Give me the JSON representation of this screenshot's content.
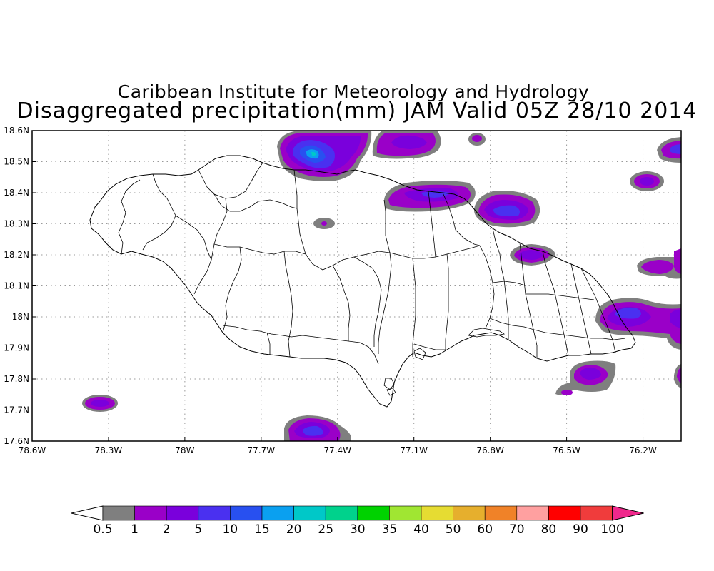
{
  "titles": {
    "line1": "Caribbean Institute for Meteorology and Hydrology",
    "line2": "Disaggregated precipitation(mm) JAM Valid 05Z 28/10 2014"
  },
  "map": {
    "lon_range": [
      -78.6,
      -76.05
    ],
    "lat_range": [
      17.6,
      18.6
    ],
    "lon_ticks": [
      {
        "value": -78.6,
        "label": "78.6W"
      },
      {
        "value": -78.3,
        "label": "78.3W"
      },
      {
        "value": -78.0,
        "label": "78W"
      },
      {
        "value": -77.7,
        "label": "77.7W"
      },
      {
        "value": -77.4,
        "label": "77.4W"
      },
      {
        "value": -77.1,
        "label": "77.1W"
      },
      {
        "value": -76.8,
        "label": "76.8W"
      },
      {
        "value": -76.5,
        "label": "76.5W"
      },
      {
        "value": -76.2,
        "label": "76.2W"
      }
    ],
    "lat_ticks": [
      {
        "value": 17.6,
        "label": "17.6N"
      },
      {
        "value": 17.7,
        "label": "17.7N"
      },
      {
        "value": 17.8,
        "label": "17.8N"
      },
      {
        "value": 17.9,
        "label": "17.9N"
      },
      {
        "value": 18.0,
        "label": "18N"
      },
      {
        "value": 18.1,
        "label": "18.1N"
      },
      {
        "value": 18.2,
        "label": "18.2N"
      },
      {
        "value": 18.3,
        "label": "18.3N"
      },
      {
        "value": 18.4,
        "label": "18.4N"
      },
      {
        "value": 18.5,
        "label": "18.5N"
      },
      {
        "value": 18.6,
        "label": "18.6N"
      }
    ],
    "grid": true
  },
  "colorbar": {
    "colors": [
      "#7f7f7f",
      "#9a00c8",
      "#7a00dc",
      "#4a30f0",
      "#2850f0",
      "#0aa0f0",
      "#00c8c8",
      "#00d28c",
      "#00d200",
      "#a0e632",
      "#e6dc32",
      "#e6af2d",
      "#f08228",
      "#ffa0a0",
      "#ff0000",
      "#f03c3c"
    ],
    "under_color": "#ffffff",
    "over_color": "#f0288c",
    "labels": [
      "0.5",
      "1",
      "2",
      "5",
      "10",
      "15",
      "20",
      "25",
      "30",
      "35",
      "40",
      "50",
      "60",
      "70",
      "80",
      "90",
      "100"
    ]
  }
}
